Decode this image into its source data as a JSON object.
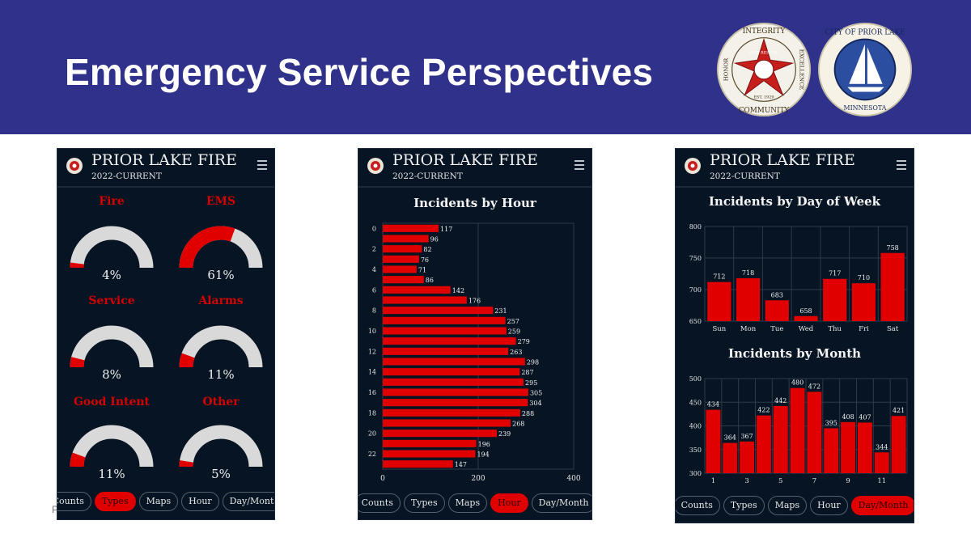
{
  "banner": {
    "title": "Emergency Service Perspectives"
  },
  "seals": {
    "fire": {
      "top": "INTEGRITY",
      "left": "HONOR",
      "right": "EXCELLENCE",
      "bottom": "COMMUNITY",
      "center": "FIRE RESCUE",
      "est": "EST. 1929"
    },
    "city": {
      "top": "CITY OF PRIOR LAKE",
      "bottom": "MINNESOTA"
    }
  },
  "app": {
    "title": "PRIOR LAKE FIRE",
    "subtitle": "2022-CURRENT"
  },
  "nav": [
    "Counts",
    "Types",
    "Maps",
    "Hour",
    "Day/Month"
  ],
  "types_panel": {
    "active_tab": "Types",
    "gauges": [
      {
        "label": "Fire",
        "value": "4%",
        "fraction": 0.04
      },
      {
        "label": "EMS",
        "value": "61%",
        "fraction": 0.61
      },
      {
        "label": "Service",
        "value": "8%",
        "fraction": 0.08
      },
      {
        "label": "Alarms",
        "value": "11%",
        "fraction": 0.11
      },
      {
        "label": "Good Intent",
        "value": "11%",
        "fraction": 0.11
      },
      {
        "label": "Other",
        "value": "5%",
        "fraction": 0.05
      }
    ]
  },
  "hour_panel": {
    "active_tab": "Hour",
    "title": "Incidents by Hour"
  },
  "daymonth_panel": {
    "active_tab": "Day/Month",
    "title_day": "Incidents by Day of Week",
    "title_month": "Incidents by Month"
  },
  "stray_text": "P",
  "colors": {
    "banner": "#2f318a",
    "panel": "#061423",
    "accent": "#e00000",
    "gauge_track": "#d9d9d9"
  },
  "chart_data": [
    {
      "type": "bar",
      "orientation": "horizontal",
      "title": "Incidents by Hour",
      "categories": [
        0,
        1,
        2,
        3,
        4,
        5,
        6,
        7,
        8,
        9,
        10,
        11,
        12,
        13,
        14,
        15,
        16,
        17,
        18,
        19,
        20,
        21,
        22,
        23
      ],
      "tick_labels": [
        "0",
        "2",
        "4",
        "6",
        "8",
        "10",
        "12",
        "14",
        "16",
        "18",
        "20",
        "22"
      ],
      "values": [
        117,
        96,
        82,
        76,
        71,
        86,
        142,
        176,
        231,
        257,
        259,
        279,
        263,
        298,
        287,
        295,
        305,
        304,
        288,
        268,
        239,
        196,
        194,
        147
      ],
      "xlim": [
        0,
        400
      ],
      "xticks": [
        0,
        200,
        400
      ],
      "grid": true
    },
    {
      "type": "bar",
      "title": "Incidents by Day of Week",
      "categories": [
        "Sun",
        "Mon",
        "Tue",
        "Wed",
        "Thu",
        "Fri",
        "Sat"
      ],
      "values": [
        712,
        718,
        683,
        658,
        717,
        710,
        758
      ],
      "ylim": [
        650,
        800
      ],
      "yticks": [
        650,
        700,
        750,
        800
      ],
      "grid": true
    },
    {
      "type": "bar",
      "title": "Incidents by Month",
      "categories": [
        1,
        2,
        3,
        4,
        5,
        6,
        7,
        8,
        9,
        10,
        11,
        12
      ],
      "tick_labels": [
        "1",
        "3",
        "5",
        "7",
        "9",
        "11"
      ],
      "values": [
        434,
        364,
        367,
        422,
        442,
        480,
        472,
        395,
        408,
        407,
        344,
        421
      ],
      "ylim": [
        300,
        500
      ],
      "yticks": [
        300,
        350,
        400,
        450,
        500
      ],
      "grid": true
    }
  ]
}
